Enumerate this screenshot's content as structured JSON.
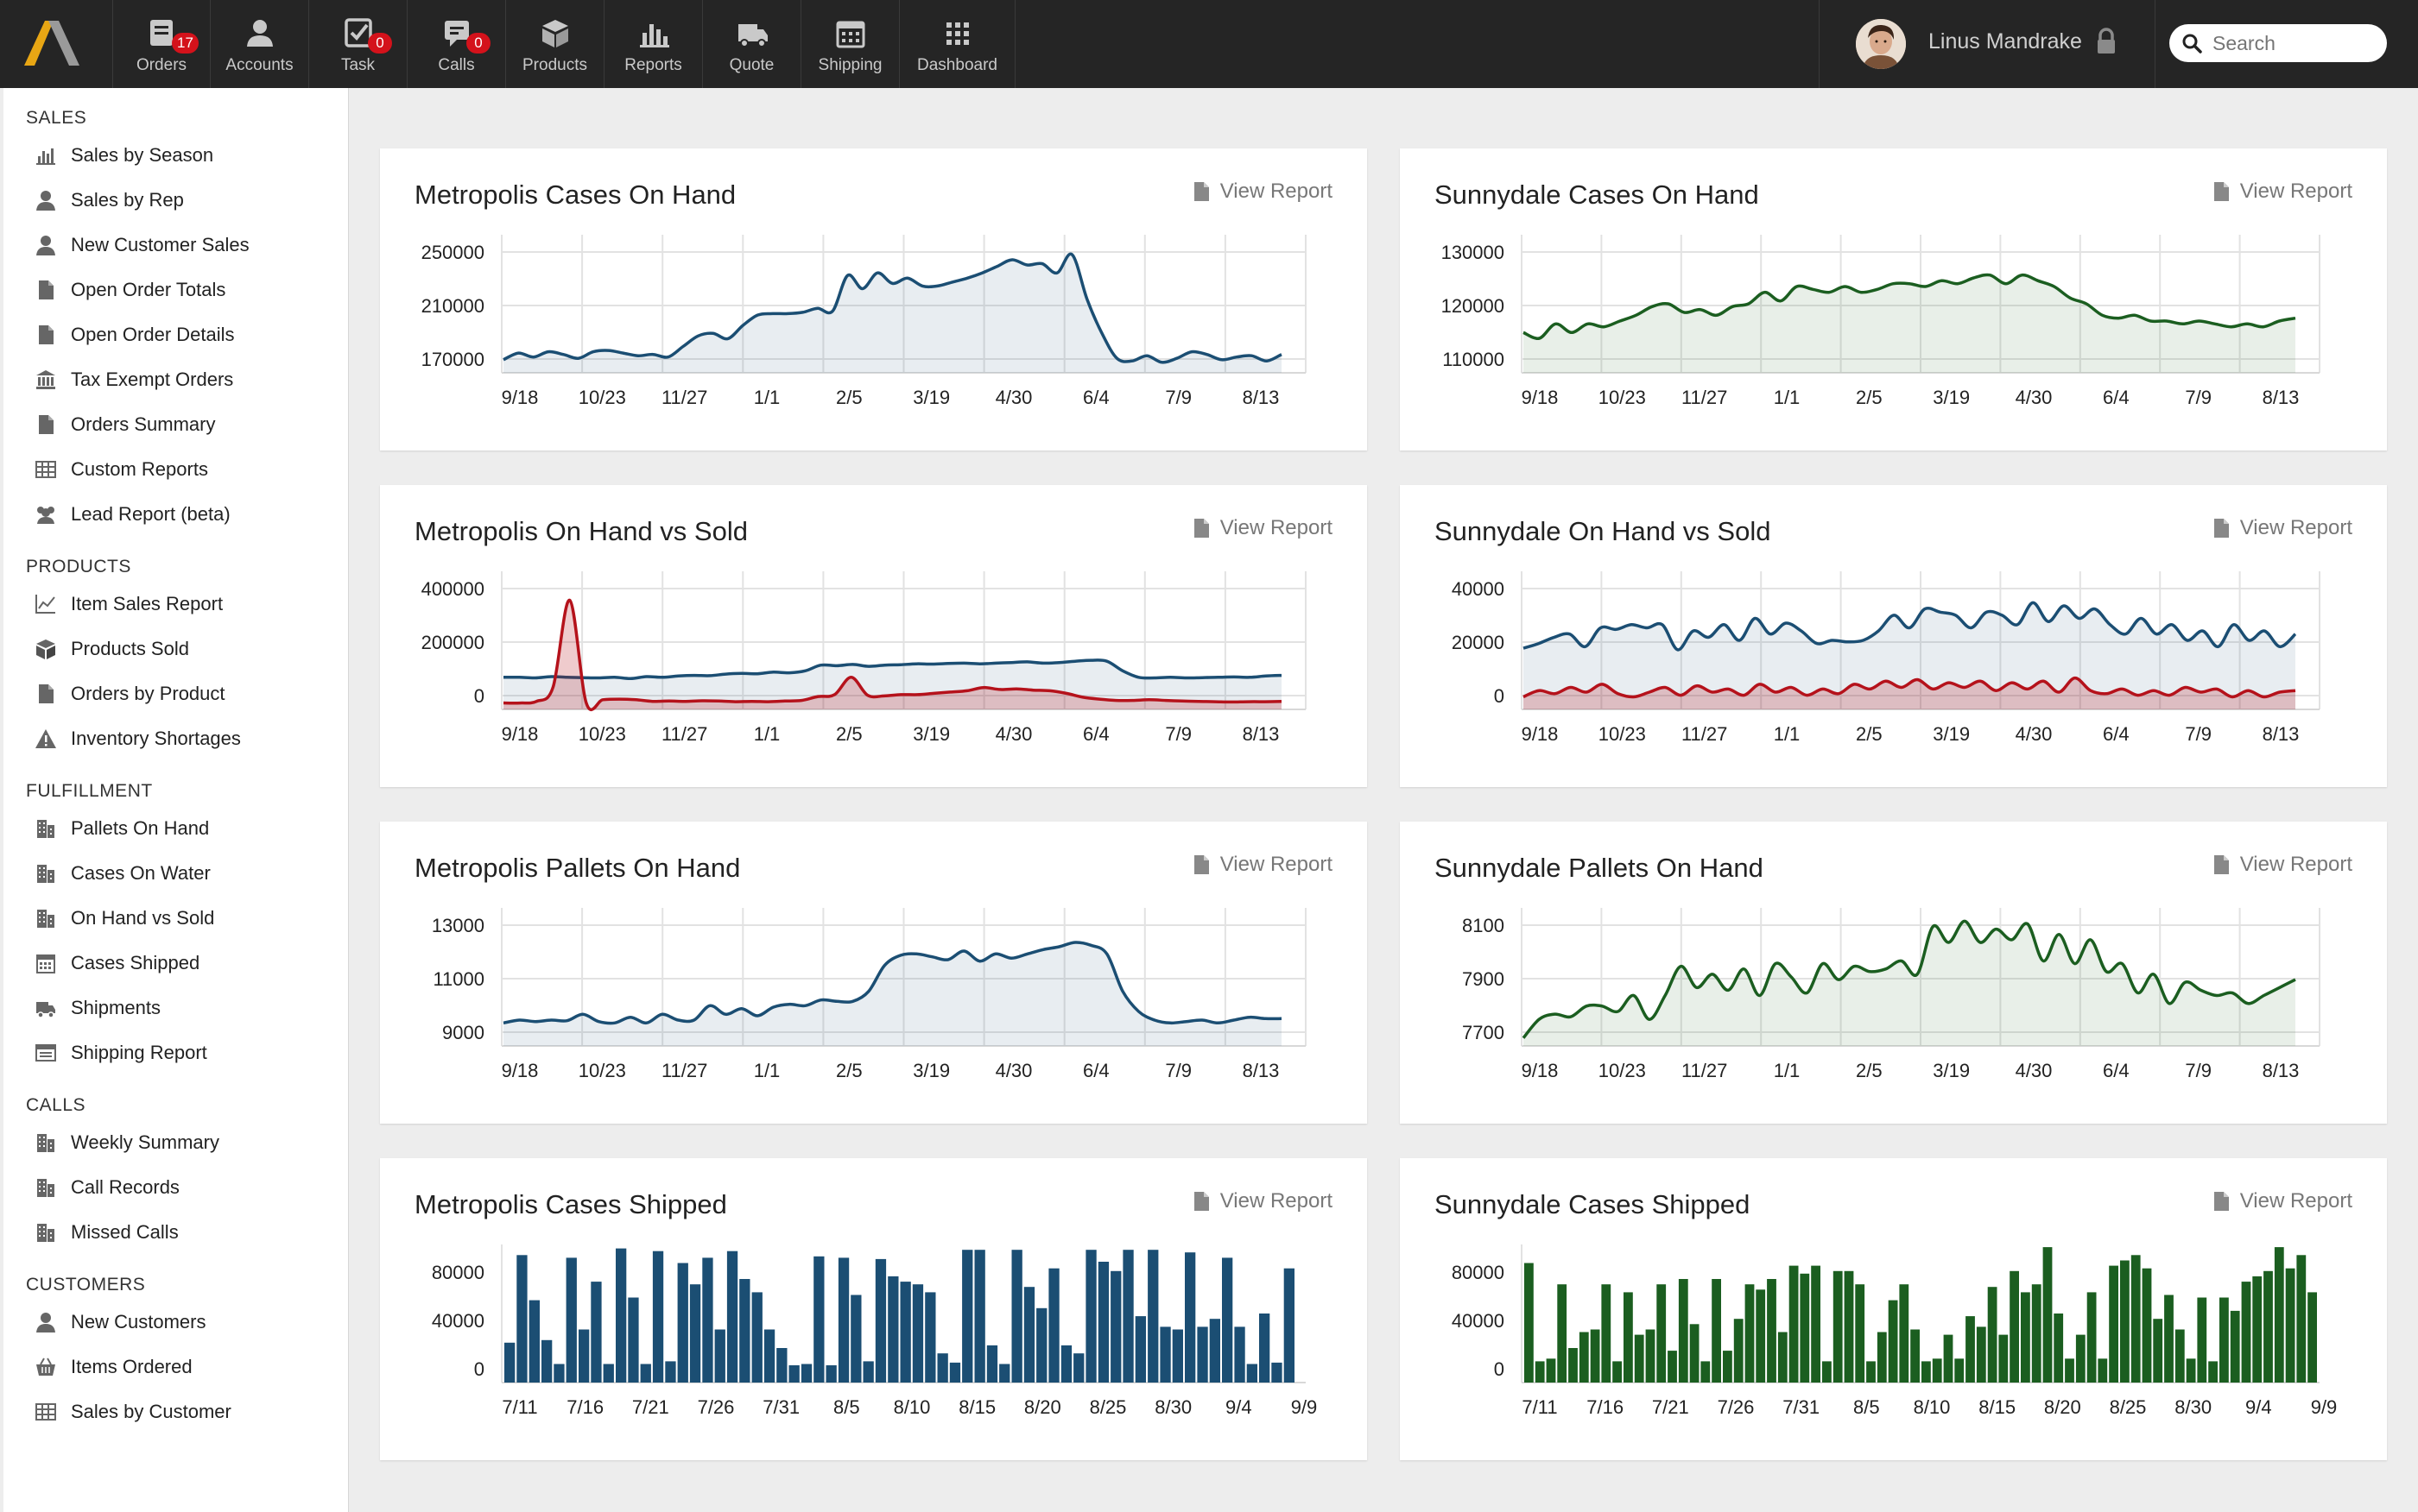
{
  "nav": {
    "items": [
      {
        "label": "Orders",
        "icon": "orders-icon",
        "badge": "17"
      },
      {
        "label": "Accounts",
        "icon": "accounts-icon",
        "badge": null
      },
      {
        "label": "Task",
        "icon": "task-icon",
        "badge": "0"
      },
      {
        "label": "Calls",
        "icon": "calls-icon",
        "badge": "0"
      },
      {
        "label": "Products",
        "icon": "products-icon",
        "badge": null
      },
      {
        "label": "Reports",
        "icon": "reports-icon",
        "badge": null
      },
      {
        "label": "Quote",
        "icon": "quote-icon",
        "badge": null
      },
      {
        "label": "Shipping",
        "icon": "shipping-icon",
        "badge": null
      },
      {
        "label": "Dashboard",
        "icon": "dashboard-icon",
        "badge": null
      }
    ]
  },
  "user": {
    "name": "Linus Mandrake"
  },
  "search": {
    "placeholder": "Search"
  },
  "colors": {
    "blue": "#1b4e73",
    "green": "#1b5e20",
    "red": "#b5121b",
    "badge": "#d4121b"
  },
  "sidebar": {
    "sections": [
      {
        "title": "SALES",
        "items": [
          {
            "label": "Sales by Season",
            "icon": "bar-chart-icon"
          },
          {
            "label": "Sales by Rep",
            "icon": "user-icon"
          },
          {
            "label": "New Customer Sales",
            "icon": "user-icon"
          },
          {
            "label": "Open Order Totals",
            "icon": "document-icon"
          },
          {
            "label": "Open Order Details",
            "icon": "document-icon"
          },
          {
            "label": "Tax Exempt Orders",
            "icon": "bank-icon"
          },
          {
            "label": "Orders Summary",
            "icon": "document-icon"
          },
          {
            "label": "Custom Reports",
            "icon": "table-icon"
          },
          {
            "label": "Lead Report (beta)",
            "icon": "group-icon"
          }
        ]
      },
      {
        "title": "PRODUCTS",
        "items": [
          {
            "label": "Item Sales Report",
            "icon": "line-chart-icon"
          },
          {
            "label": "Products Sold",
            "icon": "box-icon"
          },
          {
            "label": "Orders by Product",
            "icon": "document-icon"
          },
          {
            "label": "Inventory Shortages",
            "icon": "warning-icon"
          }
        ]
      },
      {
        "title": "FULFILLMENT",
        "items": [
          {
            "label": "Pallets On Hand",
            "icon": "building-icon"
          },
          {
            "label": "Cases On Water",
            "icon": "building-icon"
          },
          {
            "label": "On Hand vs Sold",
            "icon": "building-icon"
          },
          {
            "label": "Cases Shipped",
            "icon": "calendar-icon"
          },
          {
            "label": "Shipments",
            "icon": "truck-icon"
          },
          {
            "label": "Shipping Report",
            "icon": "report-icon"
          }
        ]
      },
      {
        "title": "CALLS",
        "items": [
          {
            "label": "Weekly Summary",
            "icon": "building-icon"
          },
          {
            "label": "Call Records",
            "icon": "building-icon"
          },
          {
            "label": "Missed Calls",
            "icon": "building-icon"
          }
        ]
      },
      {
        "title": "CUSTOMERS",
        "items": [
          {
            "label": "New Customers",
            "icon": "user-icon"
          },
          {
            "label": "Items Ordered",
            "icon": "basket-icon"
          },
          {
            "label": "Sales by Customer",
            "icon": "table-icon"
          }
        ]
      }
    ]
  },
  "view_report_label": "View Report",
  "chart_data": [
    {
      "id": "m1",
      "type": "area",
      "title": "Metropolis Cases On Hand",
      "color": "#1b4e73",
      "xticks": [
        "9/18",
        "10/23",
        "11/27",
        "1/1",
        "2/5",
        "3/19",
        "4/30",
        "6/4",
        "7/9",
        "8/13"
      ],
      "yticks": [
        "250000",
        "210000",
        "170000"
      ],
      "ylim": [
        160000,
        265000
      ],
      "values": [
        170000,
        175000,
        172000,
        176000,
        174000,
        171000,
        176000,
        177000,
        175000,
        173000,
        174000,
        172000,
        180000,
        188000,
        190000,
        186000,
        196000,
        204000,
        205000,
        205000,
        206000,
        209000,
        207000,
        234000,
        224000,
        236000,
        228000,
        232000,
        226000,
        226000,
        229000,
        232000,
        236000,
        241000,
        246000,
        242000,
        243000,
        236000,
        250000,
        216000,
        190000,
        171000,
        169000,
        173000,
        168000,
        171000,
        176000,
        174000,
        170000,
        172000,
        173000,
        169000,
        174000
      ]
    },
    {
      "id": "s1",
      "type": "area",
      "title": "Sunnydale Cases On Hand",
      "color": "#1b5e20",
      "xticks": [
        "9/18",
        "10/23",
        "11/27",
        "1/1",
        "2/5",
        "3/19",
        "4/30",
        "6/4",
        "7/9",
        "8/13"
      ],
      "yticks": [
        "130000",
        "120000",
        "110000"
      ],
      "ylim": [
        107000,
        131000
      ],
      "values": [
        114000,
        113000,
        115500,
        114000,
        115500,
        115000,
        116000,
        117000,
        118500,
        119000,
        117500,
        118000,
        117000,
        118500,
        119000,
        121000,
        119500,
        122000,
        121500,
        121000,
        122000,
        121000,
        121500,
        122500,
        122500,
        122000,
        123000,
        122500,
        123500,
        124000,
        122500,
        124000,
        123000,
        122000,
        120000,
        119000,
        117000,
        116500,
        117000,
        116000,
        116000,
        115500,
        116000,
        115500,
        115000,
        115500,
        115000,
        116000,
        116500
      ]
    },
    {
      "id": "m2",
      "type": "dual-area",
      "title": "Metropolis On Hand vs Sold",
      "xticks": [
        "9/18",
        "10/23",
        "11/27",
        "1/1",
        "2/5",
        "3/19",
        "4/30",
        "6/4",
        "7/9",
        "8/13"
      ],
      "yticks": [
        "400000",
        "200000",
        "0"
      ],
      "ylim": [
        -20000,
        410000
      ],
      "series": [
        {
          "name": "On Hand",
          "color": "#1b4e73",
          "values": [
            80000,
            80000,
            78000,
            82000,
            80000,
            79000,
            78000,
            80000,
            76000,
            82000,
            80000,
            84000,
            86000,
            85000,
            90000,
            92000,
            91000,
            96000,
            94000,
            100000,
            118000,
            116000,
            120000,
            114000,
            118000,
            119000,
            122000,
            121000,
            123000,
            124000,
            122000,
            124000,
            126000,
            128000,
            124000,
            126000,
            130000,
            133000,
            130000,
            100000,
            80000,
            78000,
            80000,
            78000,
            79000,
            80000,
            81000,
            80000,
            84000,
            86000
          ]
        },
        {
          "name": "Sold",
          "color": "#b5121b",
          "values": [
            0,
            0,
            5000,
            50000,
            320000,
            0,
            10000,
            12000,
            10000,
            5000,
            6000,
            5000,
            7000,
            6000,
            4000,
            5000,
            4000,
            6000,
            8000,
            20000,
            26000,
            80000,
            24000,
            22000,
            26000,
            26000,
            30000,
            34000,
            38000,
            48000,
            42000,
            44000,
            40000,
            38000,
            30000,
            18000,
            12000,
            8000,
            8000,
            10000,
            8000,
            6000,
            5000,
            4000,
            3000,
            4000,
            4000,
            5000
          ]
        }
      ]
    },
    {
      "id": "s2",
      "type": "dual-area",
      "title": "Sunnydale On Hand vs Sold",
      "xticks": [
        "9/18",
        "10/23",
        "11/27",
        "1/1",
        "2/5",
        "3/19",
        "4/30",
        "6/4",
        "7/9",
        "8/13"
      ],
      "yticks": [
        "40000",
        "20000",
        "0"
      ],
      "ylim": [
        -3000,
        41000
      ],
      "series": [
        {
          "name": "On Hand",
          "color": "#1b4e73",
          "values": [
            16500,
            18000,
            20000,
            21000,
            17000,
            23000,
            22500,
            24000,
            23000,
            24000,
            16000,
            22000,
            20000,
            24000,
            19000,
            26000,
            21000,
            24500,
            22000,
            18000,
            19000,
            18500,
            19000,
            22000,
            27000,
            23000,
            29000,
            28000,
            27000,
            23000,
            28000,
            27000,
            24000,
            31000,
            25000,
            30000,
            26000,
            29000,
            24000,
            21000,
            26000,
            21000,
            24000,
            19000,
            22000,
            17000,
            24000,
            19000,
            22000,
            17000,
            21000
          ]
        },
        {
          "name": "Sold",
          "color": "#b5121b",
          "values": [
            1000,
            3000,
            2000,
            4000,
            2500,
            5000,
            2000,
            1000,
            2500,
            4000,
            1500,
            4500,
            2500,
            3500,
            1500,
            5000,
            2500,
            4000,
            1500,
            3500,
            2000,
            5000,
            3500,
            6000,
            4000,
            6500,
            3500,
            5500,
            4000,
            6000,
            3000,
            5500,
            3500,
            6000,
            2500,
            7000,
            3000,
            2000,
            3500,
            1500,
            3000,
            1500,
            4000,
            2500,
            3500,
            1000,
            3000,
            1000,
            2500,
            3000
          ]
        }
      ]
    },
    {
      "id": "m3",
      "type": "area",
      "title": "Metropolis Pallets On Hand",
      "color": "#1b4e73",
      "xticks": [
        "9/18",
        "10/23",
        "11/27",
        "1/1",
        "2/5",
        "3/19",
        "4/30",
        "6/4",
        "7/9",
        "8/13"
      ],
      "yticks": [
        "13000",
        "11000",
        "9000"
      ],
      "ylim": [
        8600,
        13400
      ],
      "values": [
        9400,
        9500,
        9450,
        9500,
        9480,
        9700,
        9450,
        9400,
        9600,
        9400,
        9700,
        9500,
        9500,
        10000,
        9700,
        9900,
        9650,
        9950,
        10050,
        10000,
        10200,
        10150,
        10150,
        10500,
        11400,
        11750,
        11800,
        11700,
        11600,
        11900,
        11550,
        11800,
        11650,
        11800,
        11950,
        12050,
        12200,
        12100,
        11800,
        10500,
        9800,
        9500,
        9400,
        9450,
        9500,
        9400,
        9500,
        9600,
        9550,
        9550
      ]
    },
    {
      "id": "s3",
      "type": "area",
      "title": "Sunnydale Pallets On Hand",
      "color": "#1b5e20",
      "xticks": [
        "9/18",
        "10/23",
        "11/27",
        "1/1",
        "2/5",
        "3/19",
        "4/30",
        "6/4",
        "7/9",
        "8/13"
      ],
      "yticks": [
        "8100",
        "7900",
        "7700"
      ],
      "ylim": [
        7680,
        8200
      ],
      "values": [
        7710,
        7780,
        7800,
        7790,
        7830,
        7830,
        7810,
        7870,
        7780,
        7870,
        7980,
        7900,
        7950,
        7890,
        7970,
        7870,
        7990,
        7940,
        7880,
        7990,
        7930,
        7980,
        7960,
        7970,
        8000,
        7950,
        8130,
        8070,
        8150,
        8070,
        8120,
        8080,
        8140,
        8000,
        8100,
        7990,
        8080,
        7960,
        7990,
        7880,
        7950,
        7840,
        7920,
        7890,
        7870,
        7880,
        7840,
        7870,
        7900,
        7930
      ]
    },
    {
      "id": "m4",
      "type": "bar",
      "title": "Metropolis Cases Shipped",
      "color": "#1b4e73",
      "xticks": [
        "7/11",
        "7/16",
        "7/21",
        "7/26",
        "7/31",
        "8/5",
        "8/10",
        "8/15",
        "8/20",
        "8/25",
        "8/30",
        "9/4",
        "9/9"
      ],
      "yticks": [
        "80000",
        "40000",
        "0"
      ],
      "ylim": [
        -12000,
        92000
      ],
      "values": [
        18000,
        84000,
        50000,
        20000,
        2000,
        82000,
        28000,
        64000,
        2000,
        89000,
        52000,
        2000,
        87000,
        4000,
        78000,
        62000,
        82000,
        28000,
        87000,
        66000,
        56000,
        28000,
        14000,
        1000,
        2000,
        83000,
        1000,
        82000,
        54000,
        4000,
        81000,
        68000,
        64000,
        62000,
        56000,
        10000,
        3000,
        88000,
        88000,
        16000,
        2000,
        88000,
        60000,
        44000,
        74000,
        16000,
        10000,
        88000,
        79000,
        72000,
        88000,
        38000,
        88000,
        30000,
        28000,
        86000,
        30000,
        36000,
        82000,
        30000,
        2000,
        40000,
        3000,
        74000
      ]
    },
    {
      "id": "s4",
      "type": "bar",
      "title": "Sunnydale Cases Shipped",
      "color": "#1b5e20",
      "xticks": [
        "7/11",
        "7/16",
        "7/21",
        "7/26",
        "7/31",
        "8/5",
        "8/10",
        "8/15",
        "8/20",
        "8/25",
        "8/30",
        "9/4",
        "9/9"
      ],
      "yticks": [
        "80000",
        "40000",
        "0"
      ],
      "ylim": [
        -12000,
        92000
      ],
      "values": [
        78000,
        4000,
        6000,
        62000,
        14000,
        26000,
        28000,
        62000,
        4000,
        56000,
        24000,
        28000,
        62000,
        12000,
        66000,
        32000,
        4000,
        66000,
        12000,
        36000,
        62000,
        58000,
        66000,
        26000,
        76000,
        70000,
        76000,
        4000,
        72000,
        72000,
        62000,
        4000,
        26000,
        50000,
        62000,
        28000,
        4000,
        6000,
        24000,
        6000,
        38000,
        30000,
        60000,
        24000,
        72000,
        56000,
        62000,
        90000,
        40000,
        6000,
        24000,
        56000,
        6000,
        76000,
        80000,
        84000,
        74000,
        36000,
        54000,
        28000,
        6000,
        52000,
        4000,
        52000,
        42000,
        64000,
        68000,
        72000,
        90000,
        74000,
        84000,
        56000
      ]
    }
  ]
}
